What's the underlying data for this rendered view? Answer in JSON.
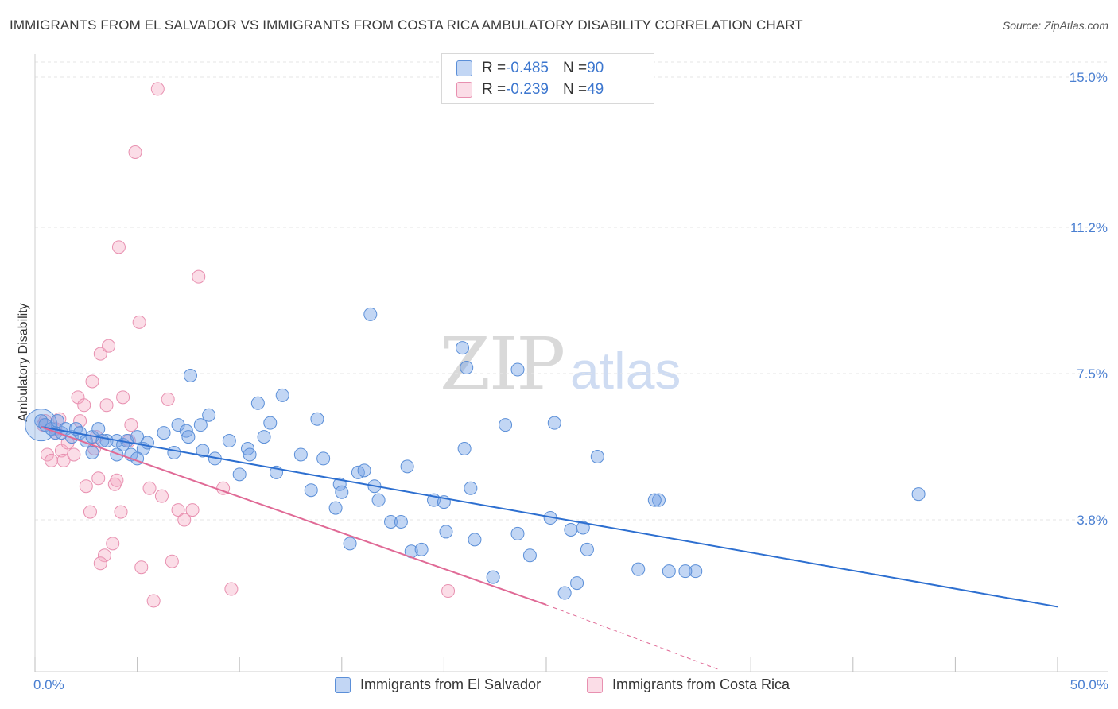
{
  "title": "IMMIGRANTS FROM EL SALVADOR VS IMMIGRANTS FROM COSTA RICA AMBULATORY DISABILITY CORRELATION CHART",
  "source": "Source: ZipAtlas.com",
  "watermark": {
    "zip": "ZIP",
    "atlas": "atlas"
  },
  "stats": [
    {
      "r_label": "R = ",
      "r_value": "-0.485",
      "n_label": "N = ",
      "n_value": "90",
      "color": "#7aa7e6"
    },
    {
      "r_label": "R = ",
      "r_value": "-0.239",
      "n_label": "N = ",
      "n_value": "49",
      "color": "#f0a0b8"
    }
  ],
  "colors": {
    "blue_fill": "rgba(120,165,230,0.45)",
    "blue_stroke": "#5b8fd8",
    "blue_line": "#2d6fd0",
    "pink_fill": "rgba(244,170,195,0.40)",
    "pink_stroke": "#e890b0",
    "pink_line": "#e06a96",
    "grid": "#e6e6e6"
  },
  "chart_data": {
    "type": "scatter",
    "title": "IMMIGRANTS FROM EL SALVADOR VS IMMIGRANTS FROM COSTA RICA AMBULATORY DISABILITY CORRELATION CHART",
    "xlabel": "",
    "ylabel": "Ambulatory Disability",
    "xlim": [
      0,
      50
    ],
    "ylim": [
      0,
      15.6
    ],
    "x_tick_labels": {
      "min": "0.0%",
      "max": "50.0%"
    },
    "y_ticks": [
      {
        "value": 3.8,
        "label": "3.8%"
      },
      {
        "value": 7.5,
        "label": "7.5%"
      },
      {
        "value": 11.2,
        "label": "11.2%"
      },
      {
        "value": 15.0,
        "label": "15.0%"
      }
    ],
    "grid": true,
    "legend_position": "bottom-center",
    "series": [
      {
        "name": "Immigrants from El Salvador",
        "color": "#7aa7e6",
        "trend": {
          "x": [
            0.3,
            50
          ],
          "y": [
            6.15,
            1.6
          ]
        },
        "points": [
          [
            0.3,
            6.3
          ],
          [
            0.5,
            6.2
          ],
          [
            0.8,
            6.1
          ],
          [
            1.0,
            6.0
          ],
          [
            1.1,
            6.3
          ],
          [
            1.3,
            6.0
          ],
          [
            1.5,
            6.1
          ],
          [
            1.8,
            5.9
          ],
          [
            2.0,
            6.1
          ],
          [
            2.2,
            6.0
          ],
          [
            2.5,
            5.8
          ],
          [
            2.8,
            5.9
          ],
          [
            3.1,
            6.1
          ],
          [
            3.5,
            5.8
          ],
          [
            4.0,
            5.8
          ],
          [
            2.8,
            5.5
          ],
          [
            3.3,
            5.8
          ],
          [
            4.3,
            5.7
          ],
          [
            4.0,
            5.45
          ],
          [
            4.5,
            5.8
          ],
          [
            5.0,
            5.9
          ],
          [
            5.3,
            5.6
          ],
          [
            5.5,
            5.75
          ],
          [
            4.7,
            5.45
          ],
          [
            5.0,
            5.35
          ],
          [
            6.3,
            6.0
          ],
          [
            6.8,
            5.5
          ],
          [
            7.0,
            6.2
          ],
          [
            7.4,
            6.05
          ],
          [
            7.5,
            5.9
          ],
          [
            8.1,
            6.2
          ],
          [
            8.5,
            6.45
          ],
          [
            7.6,
            7.45
          ],
          [
            8.2,
            5.55
          ],
          [
            8.8,
            5.35
          ],
          [
            9.5,
            5.8
          ],
          [
            10.0,
            4.95
          ],
          [
            10.4,
            5.6
          ],
          [
            10.5,
            5.45
          ],
          [
            11.2,
            5.9
          ],
          [
            11.5,
            6.25
          ],
          [
            11.8,
            5.0
          ],
          [
            12.1,
            6.95
          ],
          [
            10.9,
            6.75
          ],
          [
            13.0,
            5.45
          ],
          [
            13.5,
            4.55
          ],
          [
            13.8,
            6.35
          ],
          [
            14.1,
            5.35
          ],
          [
            14.7,
            4.1
          ],
          [
            14.9,
            4.7
          ],
          [
            15.0,
            4.5
          ],
          [
            15.4,
            3.2
          ],
          [
            15.8,
            5.0
          ],
          [
            16.1,
            5.05
          ],
          [
            16.4,
            9.0
          ],
          [
            16.6,
            4.65
          ],
          [
            16.8,
            4.3
          ],
          [
            17.4,
            3.75
          ],
          [
            17.9,
            3.75
          ],
          [
            18.2,
            5.15
          ],
          [
            18.4,
            3.0
          ],
          [
            18.9,
            3.05
          ],
          [
            19.5,
            4.3
          ],
          [
            20.0,
            4.25
          ],
          [
            20.1,
            3.5
          ],
          [
            21.0,
            5.6
          ],
          [
            21.3,
            4.6
          ],
          [
            21.5,
            3.3
          ],
          [
            22.4,
            2.35
          ],
          [
            20.9,
            8.15
          ],
          [
            21.1,
            7.65
          ],
          [
            23.0,
            6.2
          ],
          [
            23.6,
            7.6
          ],
          [
            24.2,
            2.9
          ],
          [
            23.6,
            3.45
          ],
          [
            25.2,
            3.85
          ],
          [
            25.4,
            6.25
          ],
          [
            25.9,
            1.95
          ],
          [
            26.2,
            3.55
          ],
          [
            26.5,
            2.2
          ],
          [
            27.0,
            3.05
          ],
          [
            27.5,
            5.4
          ],
          [
            29.5,
            2.55
          ],
          [
            30.5,
            4.3
          ],
          [
            30.3,
            4.3
          ],
          [
            31.0,
            2.5
          ],
          [
            32.3,
            2.5
          ],
          [
            43.2,
            4.45
          ],
          [
            31.8,
            2.5
          ],
          [
            26.8,
            3.6
          ]
        ]
      },
      {
        "name": "Immigrants from Costa Rica",
        "color": "#f0a0b8",
        "trend": {
          "x": [
            0.3,
            25
          ],
          "y": [
            6.15,
            1.65
          ],
          "dashed_to": {
            "x": 33.5,
            "y": 0.0
          }
        },
        "points": [
          [
            0.4,
            6.2
          ],
          [
            0.5,
            6.3
          ],
          [
            0.6,
            5.45
          ],
          [
            0.8,
            5.3
          ],
          [
            1.0,
            6.0
          ],
          [
            1.2,
            6.35
          ],
          [
            1.3,
            5.55
          ],
          [
            1.4,
            5.3
          ],
          [
            1.6,
            5.75
          ],
          [
            1.9,
            5.45
          ],
          [
            2.1,
            6.9
          ],
          [
            2.2,
            6.3
          ],
          [
            2.4,
            6.7
          ],
          [
            2.5,
            4.65
          ],
          [
            2.7,
            4.0
          ],
          [
            2.9,
            5.6
          ],
          [
            3.1,
            4.85
          ],
          [
            3.2,
            8.0
          ],
          [
            3.4,
            2.9
          ],
          [
            3.5,
            6.7
          ],
          [
            2.8,
            7.3
          ],
          [
            3.0,
            5.9
          ],
          [
            3.2,
            2.7
          ],
          [
            3.6,
            8.2
          ],
          [
            3.8,
            3.2
          ],
          [
            3.9,
            4.7
          ],
          [
            4.0,
            4.8
          ],
          [
            4.1,
            10.7
          ],
          [
            4.2,
            4.0
          ],
          [
            4.3,
            6.9
          ],
          [
            4.6,
            5.8
          ],
          [
            4.7,
            6.2
          ],
          [
            4.9,
            13.1
          ],
          [
            5.1,
            8.8
          ],
          [
            5.2,
            2.6
          ],
          [
            5.6,
            4.6
          ],
          [
            5.8,
            1.75
          ],
          [
            6.0,
            14.7
          ],
          [
            6.2,
            4.4
          ],
          [
            6.5,
            6.85
          ],
          [
            6.7,
            2.75
          ],
          [
            7.0,
            4.05
          ],
          [
            7.3,
            3.8
          ],
          [
            7.7,
            4.05
          ],
          [
            8.0,
            9.95
          ],
          [
            9.6,
            2.05
          ],
          [
            9.2,
            4.6
          ],
          [
            20.2,
            2.0
          ],
          [
            1.0,
            6.1
          ]
        ]
      }
    ]
  },
  "legend": [
    {
      "label": "Immigrants from El Salvador",
      "color": "#7aa7e6"
    },
    {
      "label": "Immigrants from Costa Rica",
      "color": "#f0a0b8"
    }
  ]
}
